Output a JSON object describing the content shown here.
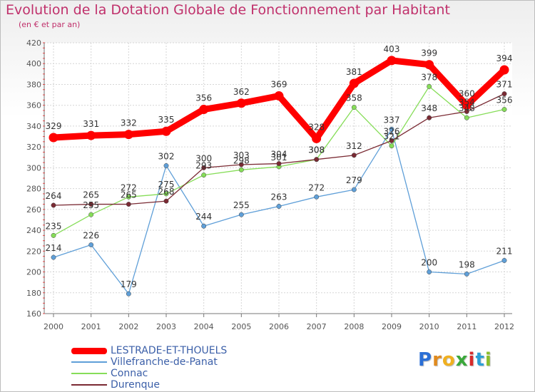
{
  "title": "Evolution de la Dotation Globale de Fonctionnement par Habitant",
  "subtitle": "(en € et par an)",
  "logo": "Proxiti",
  "chart_data": {
    "type": "line",
    "title": "Evolution de la Dotation Globale de Fonctionnement par Habitant",
    "subtitle": "(en € et par an)",
    "xlabel": "",
    "ylabel": "",
    "ylim": [
      160,
      420
    ],
    "yticks": [
      160,
      180,
      200,
      220,
      240,
      260,
      280,
      300,
      320,
      340,
      360,
      380,
      400,
      420
    ],
    "x": [
      "2000",
      "2001",
      "2002",
      "2003",
      "2004",
      "2005",
      "2006",
      "2007",
      "2008",
      "2009",
      "2010",
      "2011",
      "2012"
    ],
    "grid": true,
    "legend_position": "bottom-left",
    "series": [
      {
        "name": "LESTRADE-ET-THOUELS",
        "color": "#ff0000",
        "values": [
          329,
          331,
          332,
          335,
          356,
          362,
          369,
          328,
          381,
          403,
          399,
          360,
          394
        ]
      },
      {
        "name": "Villefranche-de-Panat",
        "color": "#5f9fd8",
        "values": [
          214,
          226,
          179,
          302,
          244,
          255,
          263,
          272,
          279,
          337,
          200,
          198,
          211
        ]
      },
      {
        "name": "Connac",
        "color": "#86dd58",
        "values": [
          235,
          255,
          272,
          275,
          293,
          298,
          301,
          308,
          358,
          321,
          378,
          348,
          356
        ]
      },
      {
        "name": "Durenque",
        "color": "#7a2a33",
        "values": [
          264,
          265,
          265,
          268,
          300,
          303,
          304,
          308,
          312,
          326,
          348,
          354,
          371
        ]
      }
    ]
  }
}
